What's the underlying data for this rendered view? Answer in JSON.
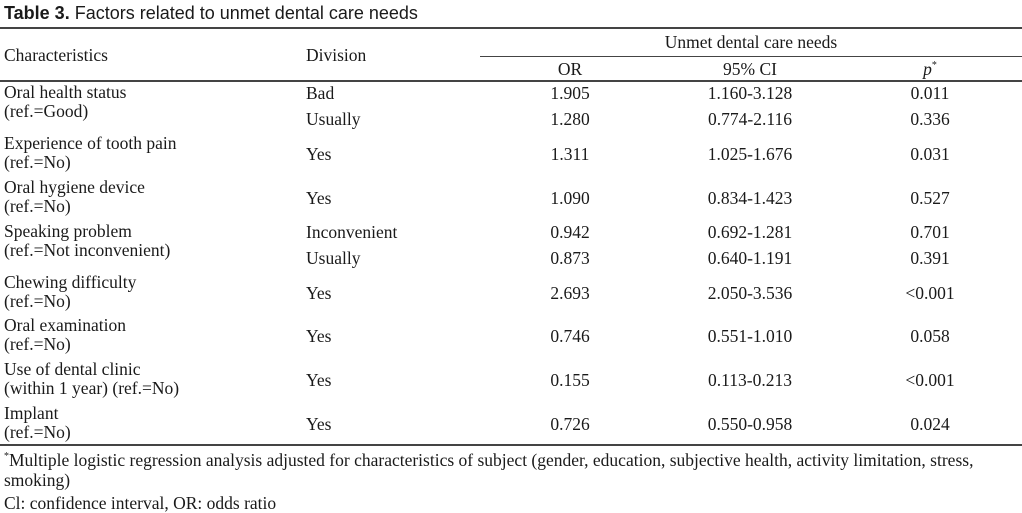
{
  "caption": {
    "label": "Table 3.",
    "text": "Factors related to unmet dental care needs"
  },
  "headers": {
    "characteristics": "Characteristics",
    "division": "Division",
    "group": "Unmet dental care needs",
    "or": "OR",
    "ci": "95% CI",
    "p": "p",
    "p_mark": "*"
  },
  "rows": [
    {
      "char1": "Oral health status",
      "char2": "(ref.=Good)",
      "divs": [
        {
          "division": "Bad",
          "or": "1.905",
          "ci": "1.160-3.128",
          "p": "0.011"
        },
        {
          "division": "Usually",
          "or": "1.280",
          "ci": "0.774-2.116",
          "p": "0.336"
        }
      ]
    },
    {
      "char1": "Experience of tooth pain",
      "char2": "(ref.=No)",
      "divs": [
        {
          "division": "Yes",
          "or": "1.311",
          "ci": "1.025-1.676",
          "p": "0.031"
        }
      ]
    },
    {
      "char1": "Oral hygiene device",
      "char2": "(ref.=No)",
      "divs": [
        {
          "division": "Yes",
          "or": "1.090",
          "ci": "0.834-1.423",
          "p": "0.527"
        }
      ]
    },
    {
      "char1": "Speaking problem",
      "char2": "(ref.=Not inconvenient)",
      "divs": [
        {
          "division": "Inconvenient",
          "or": "0.942",
          "ci": "0.692-1.281",
          "p": "0.701"
        },
        {
          "division": "Usually",
          "or": "0.873",
          "ci": "0.640-1.191",
          "p": "0.391"
        }
      ]
    },
    {
      "char1": "Chewing difficulty",
      "char2": "(ref.=No)",
      "divs": [
        {
          "division": "Yes",
          "or": "2.693",
          "ci": "2.050-3.536",
          "p": "<0.001"
        }
      ]
    },
    {
      "char1": "Oral examination",
      "char2": "(ref.=No)",
      "divs": [
        {
          "division": "Yes",
          "or": "0.746",
          "ci": "0.551-1.010",
          "p": "0.058"
        }
      ]
    },
    {
      "char1": "Use of dental clinic",
      "char2": "(within 1 year) (ref.=No)",
      "divs": [
        {
          "division": "Yes",
          "or": "0.155",
          "ci": "0.113-0.213",
          "p": "<0.001"
        }
      ]
    },
    {
      "char1": "Implant",
      "char2": "(ref.=No)",
      "divs": [
        {
          "division": "Yes",
          "or": "0.726",
          "ci": "0.550-0.958",
          "p": "0.024"
        }
      ]
    }
  ],
  "footnotes": {
    "mark": "*",
    "note1": "Multiple logistic regression analysis adjusted for characteristics of subject (gender, education, subjective health, activity limitation, stress, smoking)",
    "note2": "Cl: confidence interval, OR: odds ratio"
  }
}
